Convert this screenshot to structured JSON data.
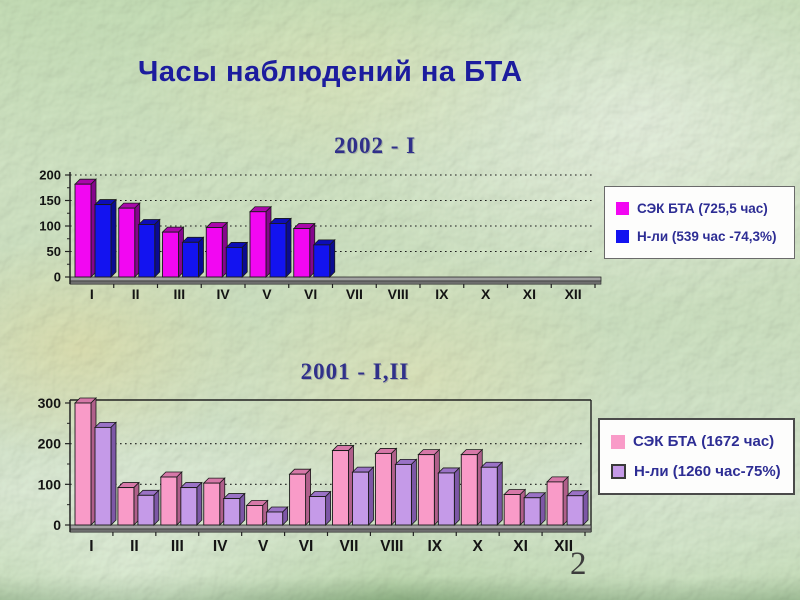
{
  "slide": {
    "title": "Часы наблюдений на БТА",
    "page_number": "2"
  },
  "chart_data": [
    {
      "type": "bar",
      "title": "2002 - I",
      "categories": [
        "I",
        "II",
        "III",
        "IV",
        "V",
        "VI",
        "VII",
        "VIII",
        "IX",
        "X",
        "XI",
        "XII"
      ],
      "yticks": [
        0,
        50,
        100,
        150,
        200
      ],
      "ylim": [
        0,
        200
      ],
      "gridlines": [
        50,
        100,
        150,
        200
      ],
      "grid": "dotted-horizontal",
      "legend_position": "right",
      "series": [
        {
          "name": "СЭК БТА (725,5 час)",
          "color": "#f207f2",
          "color_top": "#aa07aa",
          "color_side": "#85058d",
          "values": [
            182,
            135,
            88,
            97,
            128,
            95,
            0,
            0,
            0,
            0,
            0,
            0
          ]
        },
        {
          "name": "Н-ли (539 час -74,3%)",
          "color": "#1313f0",
          "color_top": "#0d0db6",
          "color_side": "#0b0b92",
          "values": [
            142,
            103,
            68,
            58,
            105,
            63,
            0,
            0,
            0,
            0,
            0,
            0
          ]
        }
      ]
    },
    {
      "type": "bar",
      "title": "2001 - I,II",
      "categories": [
        "I",
        "II",
        "III",
        "IV",
        "V",
        "VI",
        "VII",
        "VIII",
        "IX",
        "X",
        "XI",
        "XII"
      ],
      "yticks": [
        0,
        100,
        200,
        300
      ],
      "ylim": [
        0,
        300
      ],
      "gridlines": [
        100,
        200
      ],
      "grid": "dotted-horizontal",
      "legend_position": "right",
      "series": [
        {
          "name": "СЭК БТА (1672 час)",
          "color": "#f99bc8",
          "color_top": "#d678a8",
          "color_side": "#b05f8b",
          "values": [
            300,
            92,
            118,
            103,
            48,
            125,
            183,
            176,
            173,
            173,
            75,
            106
          ]
        },
        {
          "name": "Н-ли (1260 час-75%)",
          "color": "#c59ae8",
          "color_top": "#9a72c6",
          "color_side": "#7d57a6",
          "values": [
            240,
            73,
            92,
            65,
            32,
            70,
            130,
            149,
            128,
            142,
            67,
            72
          ]
        }
      ]
    }
  ]
}
